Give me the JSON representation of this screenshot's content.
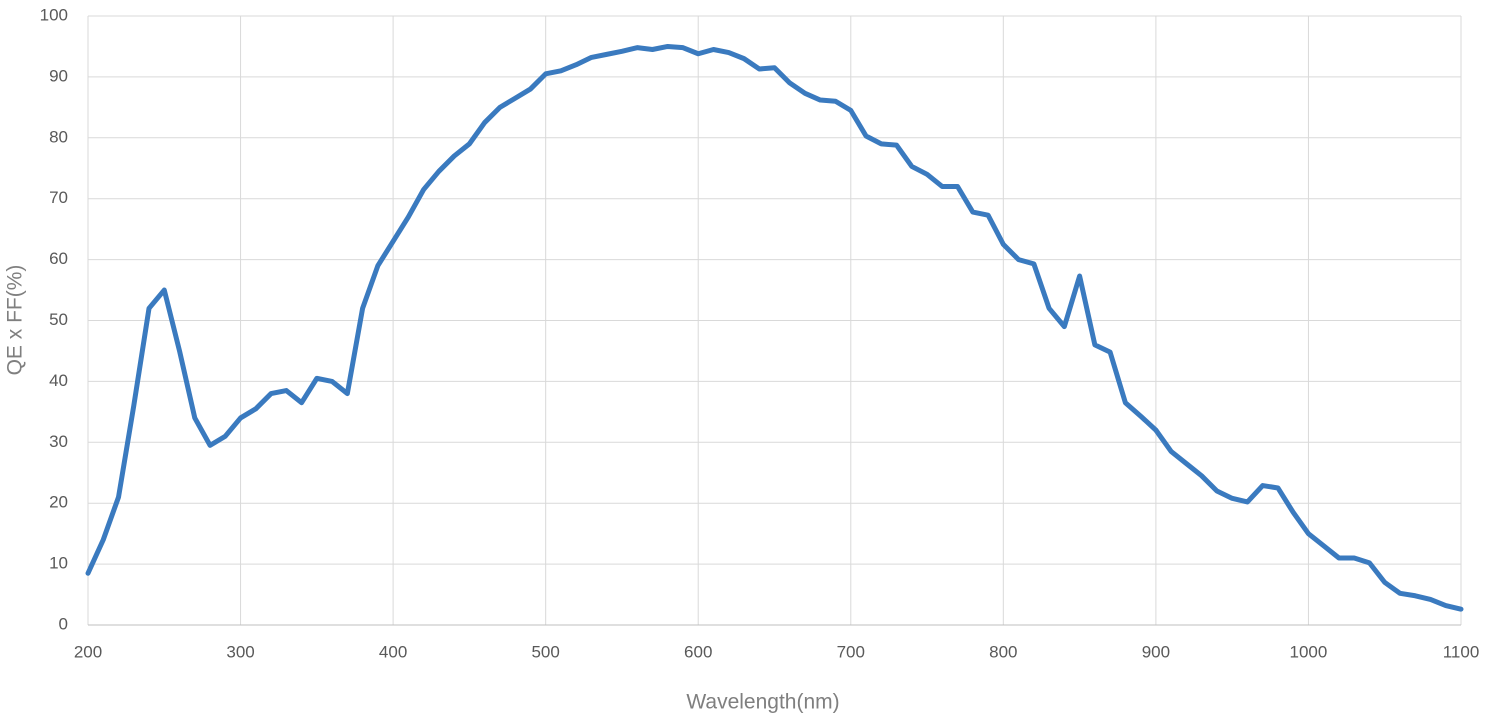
{
  "chart_data": {
    "type": "line",
    "xlabel": "Wavelength(nm)",
    "ylabel": "QE x FF(%)",
    "x": [
      200,
      210,
      220,
      230,
      240,
      250,
      260,
      270,
      280,
      290,
      300,
      310,
      320,
      330,
      340,
      350,
      360,
      370,
      380,
      390,
      400,
      410,
      420,
      430,
      440,
      450,
      460,
      470,
      480,
      490,
      500,
      510,
      520,
      530,
      540,
      550,
      560,
      570,
      580,
      590,
      600,
      610,
      620,
      630,
      640,
      650,
      660,
      670,
      680,
      690,
      700,
      710,
      720,
      730,
      740,
      750,
      760,
      770,
      780,
      790,
      800,
      810,
      820,
      830,
      840,
      850,
      860,
      870,
      880,
      890,
      900,
      910,
      920,
      930,
      940,
      950,
      960,
      970,
      980,
      990,
      1000,
      1010,
      1020,
      1030,
      1040,
      1050,
      1060,
      1070,
      1080,
      1090,
      1100
    ],
    "series": [
      {
        "name": "QE x FF",
        "color": "#3a7abf",
        "values": [
          8.5,
          14,
          21,
          36,
          52,
          55,
          45,
          34,
          29.5,
          31,
          34,
          35.5,
          38,
          38.5,
          36.5,
          40.5,
          40,
          38,
          52,
          59,
          63,
          67,
          71.5,
          74.5,
          77,
          79,
          82.5,
          85,
          86.5,
          88,
          90.5,
          91,
          92,
          93.2,
          93.7,
          94.2,
          94.8,
          94.5,
          95,
          94.8,
          93.8,
          94.5,
          94,
          93,
          91.3,
          91.5,
          89,
          87.3,
          86.2,
          86,
          84.5,
          80.3,
          79,
          78.8,
          75.3,
          74,
          72,
          72,
          67.8,
          67.3,
          62.5,
          60,
          59.3,
          52,
          49,
          57.3,
          46,
          44.8,
          36.5,
          34.3,
          32,
          28.5,
          26.5,
          24.5,
          22,
          20.8,
          20.2,
          22.9,
          22.5,
          18.5,
          15,
          13,
          11,
          11,
          10.2,
          7,
          5.2,
          4.8,
          4.2,
          3.2,
          2.6
        ]
      }
    ],
    "xlim": [
      200,
      1100
    ],
    "xticks": [
      200,
      300,
      400,
      500,
      600,
      700,
      800,
      900,
      1000,
      1100
    ],
    "ylim": [
      0,
      100
    ],
    "yticks": [
      0,
      10,
      20,
      30,
      40,
      50,
      60,
      70,
      80,
      90,
      100
    ],
    "grid": true
  }
}
